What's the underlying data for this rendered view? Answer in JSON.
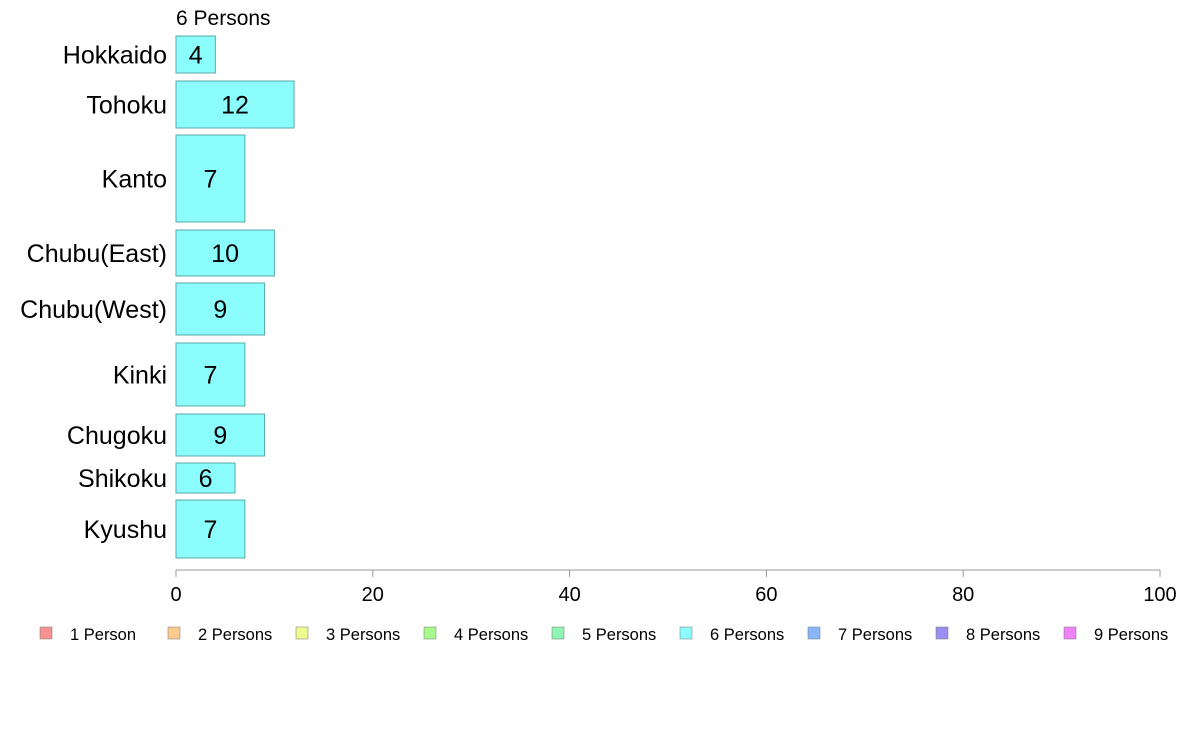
{
  "chart_data": {
    "type": "bar",
    "orientation": "horizontal",
    "subtitle": "6 Persons",
    "categories": [
      "Hokkaido",
      "Tohoku",
      "Kanto",
      "Chubu(East)",
      "Chubu(West)",
      "Kinki",
      "Chugoku",
      "Shikoku",
      "Kyushu"
    ],
    "series": [
      {
        "name": "6 Persons",
        "values": [
          4,
          12,
          7,
          10,
          9,
          7,
          9,
          6,
          7
        ],
        "color": "#8cfdfd"
      }
    ],
    "xlim": [
      0,
      100
    ],
    "xticks": [
      "0",
      "20",
      "40",
      "60",
      "80",
      "100"
    ],
    "grid": false,
    "legend_position": "bottom",
    "legend": [
      {
        "label": "1 Person",
        "color": "#f79292"
      },
      {
        "label": "2 Persons",
        "color": "#fbcb8e"
      },
      {
        "label": "3 Persons",
        "color": "#eefb8e"
      },
      {
        "label": "4 Persons",
        "color": "#a6f88a"
      },
      {
        "label": "5 Persons",
        "color": "#8ef5b2"
      },
      {
        "label": "6 Persons",
        "color": "#8cfdfd"
      },
      {
        "label": "7 Persons",
        "color": "#8ab6f9"
      },
      {
        "label": "8 Persons",
        "color": "#9a8ef2"
      },
      {
        "label": "9 Persons",
        "color": "#ee82f6"
      }
    ]
  }
}
